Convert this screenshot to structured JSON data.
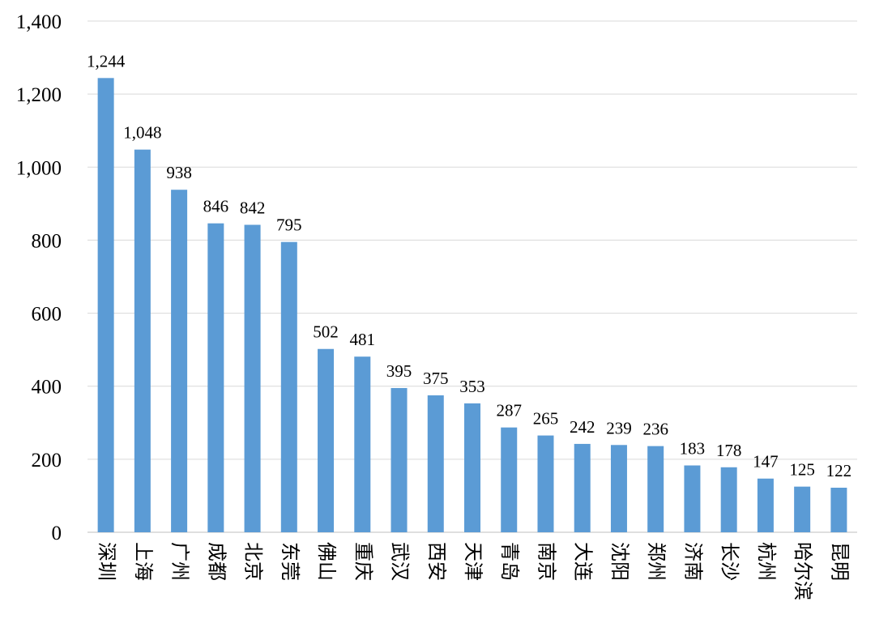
{
  "chart_data": {
    "type": "bar",
    "categories": [
      "深圳",
      "上海",
      "广州",
      "成都",
      "北京",
      "东莞",
      "佛山",
      "重庆",
      "武汉",
      "西安",
      "天津",
      "青岛",
      "南京",
      "大连",
      "沈阳",
      "郑州",
      "济南",
      "长沙",
      "杭州",
      "哈尔滨",
      "昆明"
    ],
    "values": [
      1244,
      1048,
      938,
      846,
      842,
      795,
      502,
      481,
      395,
      375,
      353,
      287,
      265,
      242,
      239,
      236,
      183,
      178,
      147,
      125,
      122
    ],
    "value_labels": [
      "1,244",
      "1,048",
      "938",
      "846",
      "842",
      "795",
      "502",
      "481",
      "395",
      "375",
      "353",
      "287",
      "265",
      "242",
      "239",
      "236",
      "183",
      "178",
      "147",
      "125",
      "122"
    ],
    "y_ticks": [
      0,
      200,
      400,
      600,
      800,
      1000,
      1200,
      1400
    ],
    "y_tick_labels": [
      "0",
      "200",
      "400",
      "600",
      "800",
      "1,000",
      "1,200",
      "1,400"
    ],
    "ylim": [
      0,
      1400
    ],
    "grid": true,
    "legend": "none",
    "bar_color": "#5b9bd5"
  }
}
